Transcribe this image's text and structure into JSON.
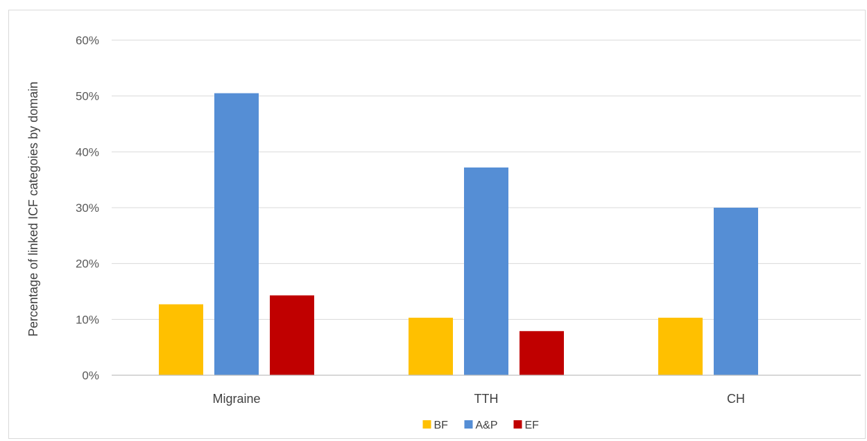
{
  "chart_data": {
    "type": "bar",
    "title": "",
    "xlabel": "",
    "ylabel": "Percentage of linked ICF categoies by domain",
    "categories": [
      "Migraine",
      "TTH",
      "CH"
    ],
    "series": [
      {
        "name": "BF",
        "color": "#FFC000",
        "values": [
          12.7,
          10.3,
          10.3
        ]
      },
      {
        "name": "A&P",
        "color": "#558ED5",
        "values": [
          50.5,
          37.2,
          30.0
        ]
      },
      {
        "name": "EF",
        "color": "#C00000",
        "values": [
          14.3,
          7.9,
          null
        ]
      }
    ],
    "ylim": [
      0,
      60
    ],
    "yticks": [
      0,
      10,
      20,
      30,
      40,
      50,
      60
    ],
    "ytick_labels": [
      "0%",
      "10%",
      "20%",
      "30%",
      "40%",
      "50%",
      "60%"
    ],
    "grid": true,
    "legend_position": "bottom-center"
  }
}
